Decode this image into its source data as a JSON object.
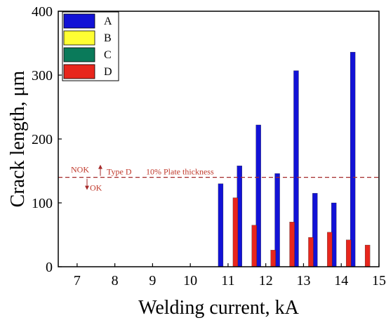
{
  "chart_data": {
    "type": "bar",
    "xlabel": "Welding current, kA",
    "ylabel": "Crack length, μm",
    "xlim": [
      6.5,
      15
    ],
    "ylim": [
      0,
      400
    ],
    "xticks": [
      7,
      8,
      9,
      10,
      11,
      12,
      13,
      14,
      15
    ],
    "yticks": [
      0,
      100,
      200,
      300,
      400
    ],
    "legend_position": "top-left",
    "series": [
      {
        "name": "A",
        "color": "#1212d6",
        "x": [
          11,
          11.5,
          12,
          12.5,
          13,
          13.5,
          14,
          14.5
        ],
        "values": [
          130,
          158,
          222,
          146,
          307,
          115,
          100,
          336
        ]
      },
      {
        "name": "B",
        "color": "#ffff33",
        "x": [
          11,
          11.5,
          12,
          12.5,
          13,
          13.5,
          14,
          14.5
        ],
        "values": [
          0,
          0,
          0,
          0,
          0,
          0,
          0,
          0
        ]
      },
      {
        "name": "C",
        "color": "#0a7a5a",
        "x": [
          11,
          11.5,
          12,
          12.5,
          13,
          13.5,
          14,
          14.5
        ],
        "values": [
          0,
          0,
          0,
          0,
          0,
          0,
          0,
          0
        ]
      },
      {
        "name": "D",
        "color": "#e8261c",
        "x": [
          11,
          11.5,
          12,
          12.5,
          13,
          13.5,
          14,
          14.5
        ],
        "values": [
          108,
          65,
          26,
          70,
          46,
          54,
          42,
          34
        ]
      }
    ],
    "reference_line": {
      "value": 140,
      "color": "#a52a2a",
      "label": "10% Plate thickness",
      "type_label": "Type D",
      "upper_label": "NOK",
      "lower_label": "OK"
    }
  }
}
